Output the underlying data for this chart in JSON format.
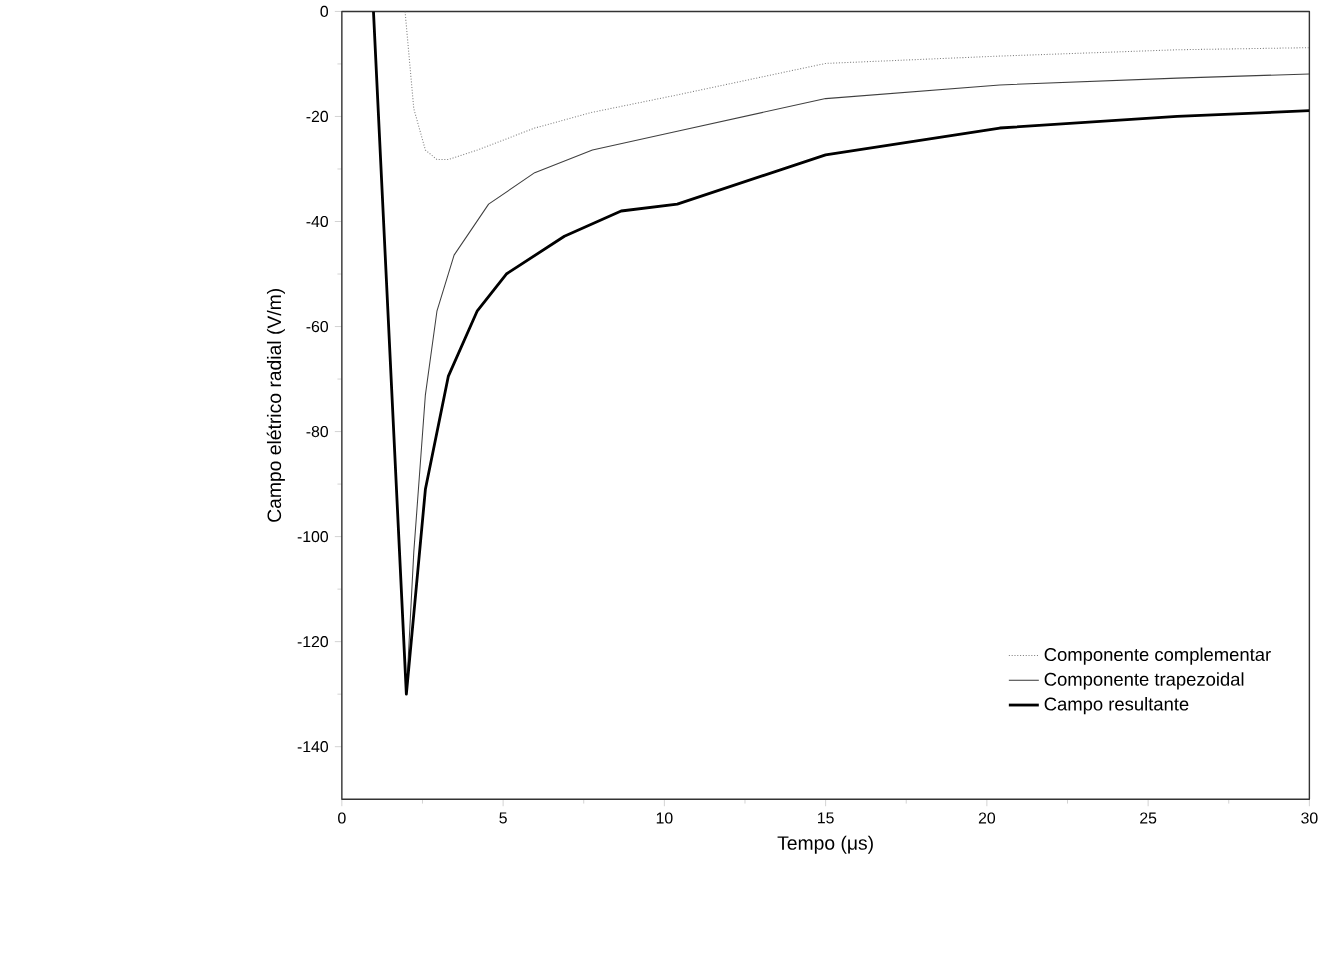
{
  "chart_data": {
    "type": "line",
    "xlabel": "Tempo (μs)",
    "ylabel": "Campo elétrico radial (V/m)",
    "xlim": [
      0,
      30
    ],
    "ylim": [
      -150,
      0
    ],
    "xticks": [
      0,
      5,
      10,
      15,
      20,
      25,
      30
    ],
    "yticks": [
      -140,
      -120,
      -100,
      -80,
      -60,
      -40,
      -20,
      0
    ],
    "legend": "bottom right",
    "grid": false,
    "marker": "none",
    "series": [
      {
        "name": "Componente complementar",
        "color": "#808080",
        "line_style": "dotted",
        "x": [
          1.96,
          2.23,
          2.59,
          2.95,
          3.3,
          4.2,
          5.98,
          7.77,
          10.4,
          15,
          20.4,
          25.9,
          30
        ],
        "values": [
          0,
          -18.5,
          -26.4,
          -28.2,
          -28.2,
          -26.4,
          -22.2,
          -19.2,
          -15.9,
          -9.9,
          -8.5,
          -7.3,
          -6.9
        ]
      },
      {
        "name": "Componente trapezoidal",
        "color": "#404040",
        "line_style": "solid",
        "x": [
          0.98,
          2.0,
          2.23,
          2.59,
          2.95,
          3.48,
          4.55,
          5.98,
          7.77,
          10.4,
          15,
          20.4,
          25.9,
          30
        ],
        "values": [
          0,
          -130,
          -103,
          -73,
          -57,
          -46.4,
          -36.7,
          -30.7,
          -26.4,
          -22.8,
          -16.6,
          -14,
          -12.7,
          -11.9
        ]
      },
      {
        "name": "Campo resultante",
        "color": "#000000",
        "line_style": "solid",
        "x": [
          0.98,
          2.0,
          2.59,
          3.3,
          4.2,
          5.1,
          6.9,
          8.66,
          10.4,
          15,
          20.4,
          25.9,
          30
        ],
        "values": [
          0,
          -130,
          -91,
          -69.5,
          -57,
          -50,
          -42.8,
          -38,
          -36.7,
          -27.3,
          -22.2,
          -20,
          -18.9
        ]
      }
    ]
  }
}
